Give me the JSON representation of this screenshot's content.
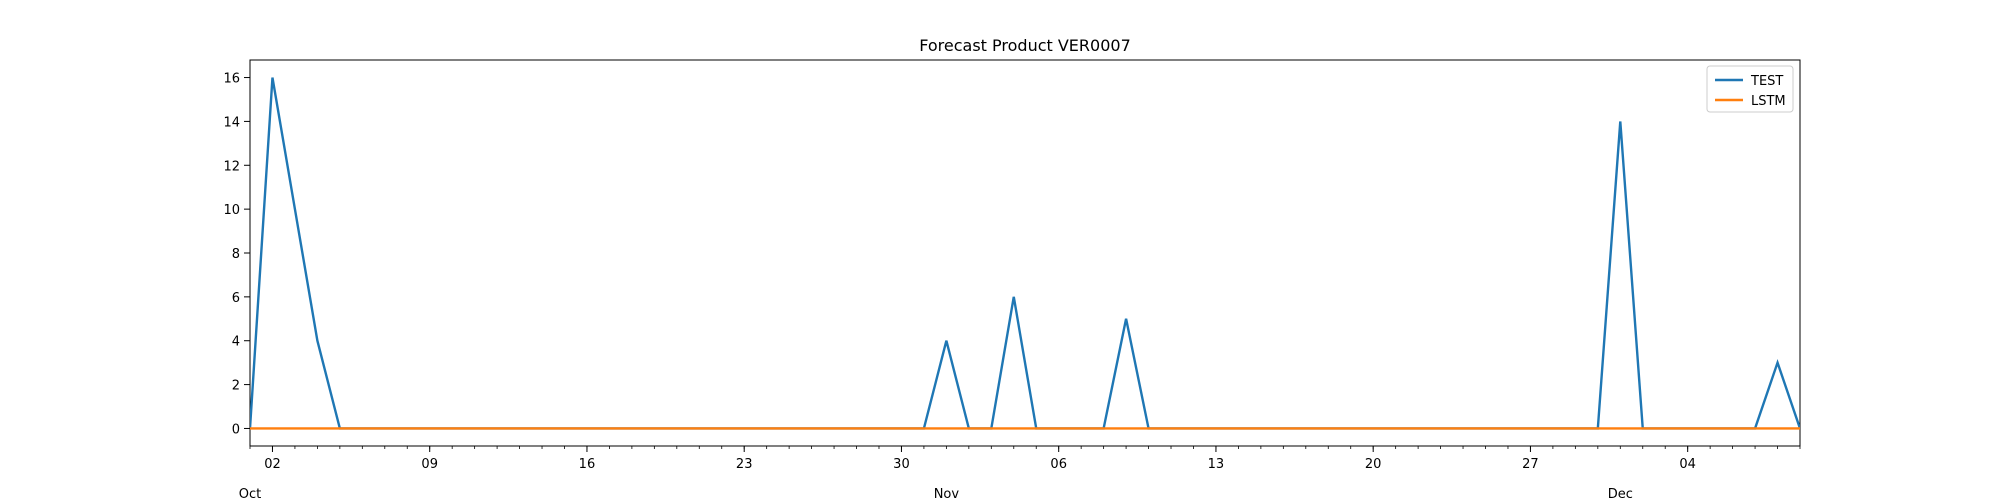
{
  "chart_data": {
    "type": "line",
    "title": "Forecast Product VER0007",
    "xlabel": "",
    "ylabel": "",
    "x": [
      "2023-10-01",
      "2023-10-02",
      "2023-10-03",
      "2023-10-04",
      "2023-10-05",
      "2023-10-06",
      "2023-10-07",
      "2023-10-08",
      "2023-10-09",
      "2023-10-10",
      "2023-10-11",
      "2023-10-12",
      "2023-10-13",
      "2023-10-14",
      "2023-10-15",
      "2023-10-16",
      "2023-10-17",
      "2023-10-18",
      "2023-10-19",
      "2023-10-20",
      "2023-10-21",
      "2023-10-22",
      "2023-10-23",
      "2023-10-24",
      "2023-10-25",
      "2023-10-26",
      "2023-10-27",
      "2023-10-28",
      "2023-10-29",
      "2023-10-30",
      "2023-10-31",
      "2023-11-01",
      "2023-11-02",
      "2023-11-03",
      "2023-11-04",
      "2023-11-05",
      "2023-11-06",
      "2023-11-07",
      "2023-11-08",
      "2023-11-09",
      "2023-11-10",
      "2023-11-11",
      "2023-11-12",
      "2023-11-13",
      "2023-11-14",
      "2023-11-15",
      "2023-11-16",
      "2023-11-17",
      "2023-11-18",
      "2023-11-19",
      "2023-11-20",
      "2023-11-21",
      "2023-11-22",
      "2023-11-23",
      "2023-11-24",
      "2023-11-25",
      "2023-11-26",
      "2023-11-27",
      "2023-11-28",
      "2023-11-29",
      "2023-11-30",
      "2023-12-01",
      "2023-12-02",
      "2023-12-03",
      "2023-12-04",
      "2023-12-05",
      "2023-12-06",
      "2023-12-07",
      "2023-12-08",
      "2023-12-09"
    ],
    "series": [
      {
        "name": "TEST",
        "color": "#1f77b4",
        "values": [
          0,
          16,
          10,
          4,
          0,
          0,
          0,
          0,
          0,
          0,
          0,
          0,
          0,
          0,
          0,
          0,
          0,
          0,
          0,
          0,
          0,
          0,
          0,
          0,
          0,
          0,
          0,
          0,
          0,
          0,
          0,
          4,
          0,
          0,
          6,
          0,
          0,
          0,
          0,
          5,
          0,
          0,
          0,
          0,
          0,
          0,
          0,
          0,
          0,
          0,
          0,
          0,
          0,
          0,
          0,
          0,
          0,
          0,
          0,
          0,
          0,
          14,
          0,
          0,
          0,
          0,
          0,
          0,
          3,
          0
        ]
      },
      {
        "name": "LSTM",
        "color": "#ff7f0e",
        "values": [
          0,
          0,
          0,
          0,
          0,
          0,
          0,
          0,
          0,
          0,
          0,
          0,
          0,
          0,
          0,
          0,
          0,
          0,
          0,
          0,
          0,
          0,
          0,
          0,
          0,
          0,
          0,
          0,
          0,
          0,
          0,
          0,
          0,
          0,
          0,
          0,
          0,
          0,
          0,
          0,
          0,
          0,
          0,
          0,
          0,
          0,
          0,
          0,
          0,
          0,
          0,
          0,
          0,
          0,
          0,
          0,
          0,
          0,
          0,
          0,
          0,
          0,
          0,
          0,
          0,
          0,
          0,
          0,
          0,
          0
        ]
      }
    ],
    "ylim": [
      -0.8,
      16.8
    ],
    "yticks": [
      0,
      2,
      4,
      6,
      8,
      10,
      12,
      14,
      16
    ],
    "xticks_major": [
      {
        "date": "2023-10-02",
        "label": "02"
      },
      {
        "date": "2023-10-09",
        "label": "09"
      },
      {
        "date": "2023-10-16",
        "label": "16"
      },
      {
        "date": "2023-10-23",
        "label": "23"
      },
      {
        "date": "2023-10-30",
        "label": "30"
      },
      {
        "date": "2023-11-06",
        "label": "06"
      },
      {
        "date": "2023-11-13",
        "label": "13"
      },
      {
        "date": "2023-11-20",
        "label": "20"
      },
      {
        "date": "2023-11-27",
        "label": "27"
      },
      {
        "date": "2023-12-04",
        "label": "04"
      }
    ],
    "xticks_month": [
      {
        "date": "2023-10-01",
        "label": "Oct"
      },
      {
        "date": "2023-11-01",
        "label": "Nov"
      },
      {
        "date": "2023-12-01",
        "label": "Dec"
      }
    ],
    "grid": false,
    "legend_position": "top-right"
  }
}
